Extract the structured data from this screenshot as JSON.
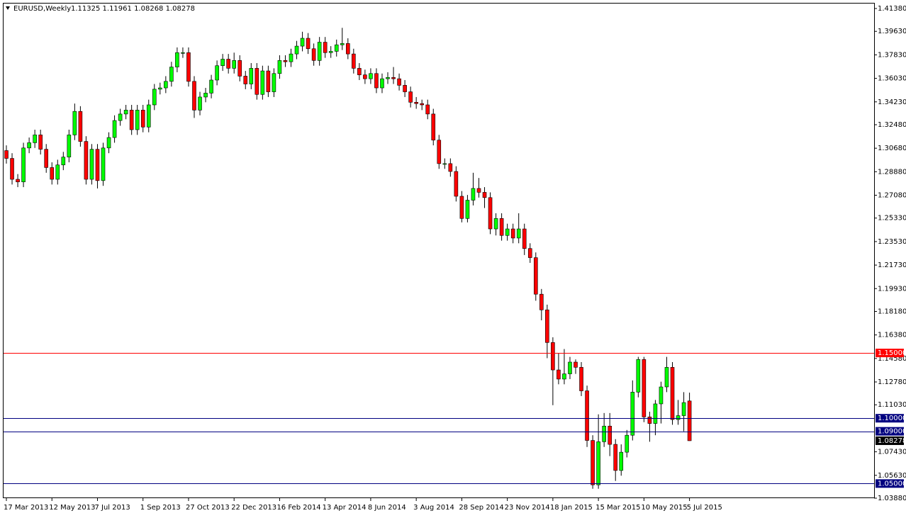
{
  "chart_data": {
    "type": "candlestick",
    "title": "EURUSD,Weekly",
    "ohlc_text": "1.11325 1.11961 1.08268 1.08278",
    "up_color": "#00ff00",
    "down_color": "#ff0000",
    "categories": [
      "17 Mar 2013",
      null,
      null,
      null,
      null,
      null,
      null,
      null,
      "12 May 2013",
      null,
      null,
      null,
      null,
      null,
      null,
      null,
      "7 Jul 2013",
      null,
      null,
      null,
      null,
      null,
      null,
      null,
      "1 Sep 2013",
      null,
      null,
      null,
      null,
      null,
      null,
      null,
      "27 Oct 2013",
      null,
      null,
      null,
      null,
      null,
      null,
      null,
      "22 Dec 2013",
      null,
      null,
      null,
      null,
      null,
      null,
      null,
      "16 Feb 2014",
      null,
      null,
      null,
      null,
      null,
      null,
      null,
      "13 Apr 2014",
      null,
      null,
      null,
      null,
      null,
      null,
      null,
      "8 Jun 2014",
      null,
      null,
      null,
      null,
      null,
      null,
      null,
      "3 Aug 2014",
      null,
      null,
      null,
      null,
      null,
      null,
      null,
      "28 Sep 2014",
      null,
      null,
      null,
      null,
      null,
      null,
      null,
      "23 Nov 2014",
      null,
      null,
      null,
      null,
      null,
      null,
      null,
      "18 Jan 2015",
      null,
      null,
      null,
      null,
      null,
      null,
      null,
      "15 Mar 2015",
      null,
      null,
      null,
      null,
      null,
      null,
      null,
      "10 May 2015",
      null,
      null,
      null,
      null,
      null,
      null,
      null,
      "5 Jul 2015"
    ],
    "open": [
      1.305,
      1.299,
      1.283,
      1.281,
      1.307,
      1.311,
      1.317,
      1.306,
      1.292,
      1.283,
      1.294,
      1.3,
      1.317,
      1.335,
      1.312,
      1.283,
      1.306,
      1.282,
      1.307,
      1.315,
      1.328,
      1.333,
      1.336,
      1.321,
      1.336,
      1.323,
      1.34,
      1.352,
      1.353,
      1.358,
      1.369,
      1.38,
      1.38,
      1.358,
      1.336,
      1.346,
      1.349,
      1.359,
      1.37,
      1.375,
      1.368,
      1.374,
      1.362,
      1.356,
      1.368,
      1.348,
      1.366,
      1.35,
      1.364,
      1.374,
      1.373,
      1.379,
      1.385,
      1.391,
      1.383,
      1.374,
      1.388,
      1.38,
      1.381,
      1.386,
      1.387,
      1.379,
      1.368,
      1.363,
      1.36,
      1.364,
      1.353,
      1.36,
      1.361,
      1.36,
      1.355,
      1.35,
      1.342,
      1.341,
      1.34,
      1.333,
      1.313,
      1.295,
      1.295,
      1.289,
      1.27,
      1.253,
      1.267,
      1.276,
      1.273,
      1.269,
      1.245,
      1.253,
      1.24,
      1.245,
      1.238,
      1.245,
      1.23,
      1.223,
      1.195,
      1.183,
      1.158,
      1.137,
      1.13,
      1.134,
      1.143,
      1.139,
      1.121,
      1.083,
      1.049,
      1.082,
      1.094,
      1.08,
      1.06,
      1.074,
      1.087,
      1.12,
      1.145,
      1.101,
      1.096,
      1.111,
      1.124,
      1.139,
      1.099,
      1.102,
      1.11325
    ],
    "high": [
      1.309,
      1.303,
      1.287,
      1.311,
      1.315,
      1.321,
      1.321,
      1.31,
      1.296,
      1.298,
      1.304,
      1.321,
      1.341,
      1.339,
      1.316,
      1.31,
      1.31,
      1.311,
      1.319,
      1.332,
      1.337,
      1.34,
      1.34,
      1.34,
      1.34,
      1.344,
      1.356,
      1.357,
      1.362,
      1.373,
      1.384,
      1.384,
      1.384,
      1.362,
      1.35,
      1.353,
      1.363,
      1.374,
      1.379,
      1.379,
      1.38,
      1.378,
      1.366,
      1.372,
      1.372,
      1.37,
      1.37,
      1.368,
      1.378,
      1.378,
      1.383,
      1.389,
      1.396,
      1.395,
      1.387,
      1.392,
      1.392,
      1.385,
      1.39,
      1.399,
      1.391,
      1.383,
      1.372,
      1.367,
      1.368,
      1.368,
      1.364,
      1.365,
      1.369,
      1.364,
      1.359,
      1.354,
      1.346,
      1.344,
      1.344,
      1.337,
      1.317,
      1.299,
      1.299,
      1.293,
      1.274,
      1.271,
      1.288,
      1.284,
      1.277,
      1.273,
      1.257,
      1.257,
      1.249,
      1.249,
      1.257,
      1.249,
      1.234,
      1.227,
      1.199,
      1.187,
      1.162,
      1.15,
      1.153,
      1.147,
      1.145,
      1.143,
      1.125,
      1.087,
      1.103,
      1.104,
      1.104,
      1.084,
      1.08,
      1.091,
      1.129,
      1.147,
      1.147,
      1.105,
      1.114,
      1.128,
      1.147,
      1.143,
      1.114,
      1.12,
      1.11961
    ],
    "low": [
      1.295,
      1.279,
      1.277,
      1.277,
      1.303,
      1.307,
      1.302,
      1.288,
      1.279,
      1.279,
      1.29,
      1.296,
      1.313,
      1.308,
      1.279,
      1.279,
      1.276,
      1.278,
      1.303,
      1.311,
      1.324,
      1.329,
      1.317,
      1.317,
      1.319,
      1.319,
      1.336,
      1.348,
      1.349,
      1.354,
      1.365,
      1.376,
      1.354,
      1.33,
      1.332,
      1.342,
      1.345,
      1.355,
      1.366,
      1.364,
      1.364,
      1.358,
      1.352,
      1.352,
      1.344,
      1.344,
      1.346,
      1.346,
      1.36,
      1.369,
      1.369,
      1.375,
      1.381,
      1.379,
      1.37,
      1.37,
      1.376,
      1.376,
      1.377,
      1.382,
      1.375,
      1.364,
      1.359,
      1.356,
      1.356,
      1.349,
      1.349,
      1.356,
      1.356,
      1.351,
      1.346,
      1.338,
      1.337,
      1.336,
      1.329,
      1.309,
      1.291,
      1.291,
      1.285,
      1.266,
      1.25,
      1.25,
      1.263,
      1.269,
      1.261,
      1.241,
      1.24,
      1.236,
      1.236,
      1.234,
      1.234,
      1.225,
      1.219,
      1.19,
      1.175,
      1.146,
      1.11,
      1.126,
      1.126,
      1.13,
      1.134,
      1.117,
      1.078,
      1.046,
      1.046,
      1.078,
      1.071,
      1.052,
      1.056,
      1.07,
      1.083,
      1.116,
      1.097,
      1.082,
      1.087,
      1.096,
      1.12,
      1.095,
      1.095,
      1.09,
      1.08268
    ],
    "close": [
      1.299,
      1.283,
      1.281,
      1.307,
      1.311,
      1.317,
      1.306,
      1.292,
      1.283,
      1.294,
      1.3,
      1.317,
      1.335,
      1.312,
      1.283,
      1.306,
      1.282,
      1.307,
      1.315,
      1.328,
      1.333,
      1.336,
      1.321,
      1.336,
      1.323,
      1.34,
      1.352,
      1.353,
      1.358,
      1.369,
      1.38,
      1.38,
      1.358,
      1.336,
      1.346,
      1.349,
      1.359,
      1.37,
      1.375,
      1.368,
      1.374,
      1.362,
      1.356,
      1.368,
      1.348,
      1.366,
      1.35,
      1.364,
      1.374,
      1.373,
      1.379,
      1.385,
      1.391,
      1.383,
      1.374,
      1.388,
      1.38,
      1.381,
      1.386,
      1.387,
      1.379,
      1.368,
      1.363,
      1.36,
      1.364,
      1.353,
      1.36,
      1.361,
      1.36,
      1.355,
      1.35,
      1.342,
      1.341,
      1.34,
      1.333,
      1.313,
      1.295,
      1.295,
      1.289,
      1.27,
      1.253,
      1.267,
      1.276,
      1.273,
      1.269,
      1.245,
      1.253,
      1.24,
      1.245,
      1.238,
      1.245,
      1.23,
      1.223,
      1.195,
      1.183,
      1.158,
      1.137,
      1.13,
      1.134,
      1.143,
      1.139,
      1.121,
      1.083,
      1.049,
      1.082,
      1.094,
      1.08,
      1.06,
      1.074,
      1.087,
      1.12,
      1.145,
      1.101,
      1.096,
      1.111,
      1.124,
      1.139,
      1.099,
      1.102,
      1.112,
      1.08278
    ],
    "ylim": [
      1.0388,
      1.4176
    ],
    "yticks": [
      {
        "value": 1.4138,
        "label": "1.41380"
      },
      {
        "value": 1.3963,
        "label": "1.39630"
      },
      {
        "value": 1.3783,
        "label": "1.37830"
      },
      {
        "value": 1.3603,
        "label": "1.36030"
      },
      {
        "value": 1.3423,
        "label": "1.34230"
      },
      {
        "value": 1.3248,
        "label": "1.32480"
      },
      {
        "value": 1.3068,
        "label": "1.30680"
      },
      {
        "value": 1.2888,
        "label": "1.28880"
      },
      {
        "value": 1.2708,
        "label": "1.27080"
      },
      {
        "value": 1.2533,
        "label": "1.25330"
      },
      {
        "value": 1.2353,
        "label": "1.23530"
      },
      {
        "value": 1.2173,
        "label": "1.21730"
      },
      {
        "value": 1.1993,
        "label": "1.19930"
      },
      {
        "value": 1.1818,
        "label": "1.18180"
      },
      {
        "value": 1.1638,
        "label": "1.16380"
      },
      {
        "value": 1.1458,
        "label": "1.14580"
      },
      {
        "value": 1.1278,
        "label": "1.12780"
      },
      {
        "value": 1.1103,
        "label": "1.11030"
      },
      {
        "value": 1.0743,
        "label": "1.07430"
      },
      {
        "value": 1.0563,
        "label": "1.05630"
      },
      {
        "value": 1.0388,
        "label": "1.03880"
      }
    ],
    "levels": [
      {
        "value": 1.15,
        "label": "1.15000",
        "color": "#ff0000"
      },
      {
        "value": 1.1,
        "label": "1.10000",
        "color": "#000080"
      },
      {
        "value": 1.09,
        "label": "1.09000",
        "color": "#000080"
      },
      {
        "value": 1.05,
        "label": "1.05000",
        "color": "#000080"
      }
    ],
    "current_price": {
      "value": 1.08278,
      "label": "1.08278",
      "color": "#000000"
    }
  }
}
